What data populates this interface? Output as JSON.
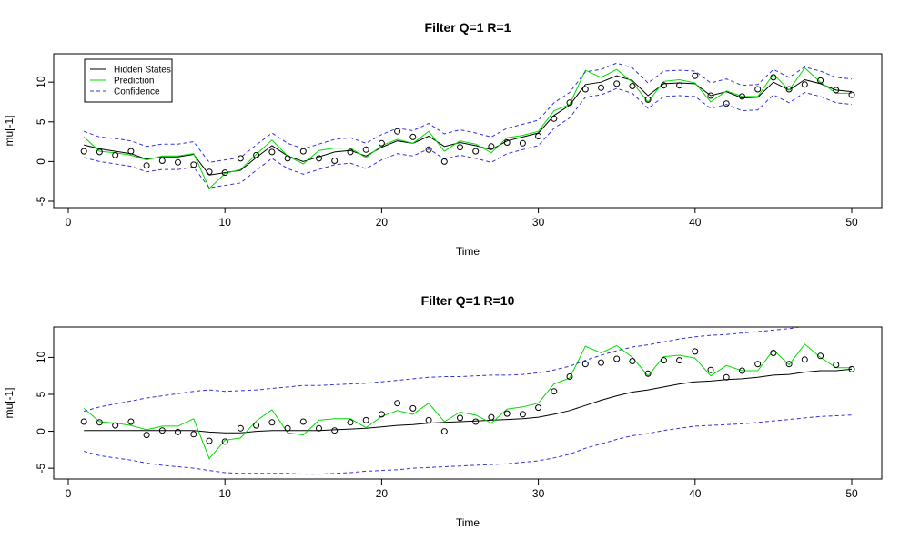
{
  "chart_data": [
    {
      "type": "line",
      "title": "Filter Q=1 R=1",
      "xlabel": "Time",
      "ylabel": "mu[-1]",
      "xlim": [
        0,
        50
      ],
      "ylim": [
        -5,
        13
      ],
      "xticks": [
        0,
        10,
        20,
        30,
        40,
        50
      ],
      "yticks": [
        -5,
        0,
        5,
        10
      ],
      "legend": {
        "position": "top-left",
        "entries": [
          "Hidden States",
          "Prediction",
          "Confidence"
        ]
      },
      "x": [
        1,
        2,
        3,
        4,
        5,
        6,
        7,
        8,
        9,
        10,
        11,
        12,
        13,
        14,
        15,
        16,
        17,
        18,
        19,
        20,
        21,
        22,
        23,
        24,
        25,
        26,
        27,
        28,
        29,
        30,
        31,
        32,
        33,
        34,
        35,
        36,
        37,
        38,
        39,
        40,
        41,
        42,
        43,
        44,
        45,
        46,
        47,
        48,
        49,
        50
      ],
      "series": [
        {
          "name": "Hidden States",
          "style": "line",
          "color": "#000000",
          "values": [
            2.1,
            1.6,
            1.3,
            1.0,
            0.3,
            0.6,
            0.6,
            0.9,
            -1.7,
            -1.4,
            -1.1,
            0.5,
            2.0,
            0.7,
            0.0,
            0.6,
            1.2,
            1.4,
            0.7,
            1.8,
            2.6,
            2.3,
            3.2,
            1.9,
            2.4,
            2.0,
            1.5,
            2.6,
            3.1,
            3.6,
            5.8,
            7.1,
            9.7,
            10.0,
            10.8,
            10.2,
            8.3,
            9.8,
            9.9,
            9.8,
            8.3,
            8.8,
            8.0,
            8.1,
            10.0,
            9.0,
            10.3,
            9.8,
            9.0,
            8.8
          ]
        },
        {
          "name": "Prediction",
          "style": "line",
          "color": "#00dd00",
          "values": [
            3.1,
            1.3,
            1.1,
            0.8,
            0.2,
            0.7,
            0.7,
            1.0,
            -3.4,
            -1.5,
            -1.0,
            0.9,
            2.7,
            0.7,
            -0.3,
            1.4,
            1.7,
            1.7,
            0.5,
            2.0,
            2.8,
            2.3,
            3.8,
            1.3,
            2.6,
            2.2,
            1.1,
            3.0,
            3.3,
            3.8,
            6.4,
            7.2,
            11.5,
            10.6,
            11.6,
            10.0,
            7.5,
            10.1,
            10.3,
            9.9,
            7.5,
            8.9,
            8.2,
            8.2,
            11.0,
            9.0,
            11.8,
            10.0,
            8.6,
            8.6
          ]
        },
        {
          "name": "Confidence",
          "style": "dashed",
          "color": "#3333dd",
          "band": true,
          "upper": [
            3.8,
            3.1,
            2.9,
            2.6,
            1.9,
            2.2,
            2.2,
            2.5,
            -0.1,
            0.2,
            0.5,
            2.1,
            3.6,
            2.3,
            1.6,
            2.2,
            2.8,
            3.0,
            2.3,
            3.4,
            4.2,
            3.9,
            4.8,
            3.5,
            4.0,
            3.6,
            3.1,
            4.2,
            4.7,
            5.2,
            7.4,
            8.7,
            11.3,
            11.6,
            12.4,
            11.8,
            9.9,
            11.4,
            11.5,
            11.4,
            9.9,
            10.4,
            9.6,
            9.7,
            11.6,
            10.6,
            11.9,
            11.4,
            10.6,
            10.4
          ],
          "lower": [
            0.5,
            0.0,
            -0.3,
            -0.6,
            -1.3,
            -1.0,
            -1.0,
            -0.7,
            -3.3,
            -3.0,
            -2.7,
            -1.1,
            0.4,
            -0.9,
            -1.6,
            -1.0,
            -0.4,
            -0.2,
            -0.9,
            0.2,
            1.0,
            0.7,
            1.6,
            0.3,
            0.8,
            0.4,
            -0.1,
            1.0,
            1.5,
            2.0,
            4.2,
            5.5,
            8.1,
            8.4,
            9.2,
            8.6,
            6.7,
            8.2,
            8.3,
            8.2,
            6.7,
            7.2,
            6.4,
            6.5,
            8.4,
            7.4,
            8.7,
            8.2,
            7.4,
            7.2
          ]
        },
        {
          "name": "Observations",
          "style": "points",
          "color": "#000000",
          "values": [
            1.3,
            1.2,
            0.8,
            1.3,
            -0.5,
            0.1,
            -0.1,
            -0.4,
            -1.3,
            -1.4,
            0.4,
            0.8,
            1.2,
            0.4,
            1.3,
            0.4,
            0.1,
            1.2,
            1.5,
            2.3,
            3.8,
            3.1,
            1.5,
            0.0,
            1.8,
            1.3,
            1.9,
            2.4,
            2.3,
            3.2,
            5.4,
            7.4,
            9.1,
            9.3,
            9.8,
            9.5,
            7.8,
            9.6,
            9.6,
            10.8,
            8.3,
            7.3,
            8.2,
            9.1,
            10.6,
            9.1,
            9.7,
            10.2,
            9.0,
            8.4
          ]
        }
      ]
    },
    {
      "type": "line",
      "title": "Filter Q=1 R=10",
      "xlabel": "Time",
      "ylabel": "mu[-1]",
      "xlim": [
        0,
        50
      ],
      "ylim": [
        -5.6,
        13.5
      ],
      "xticks": [
        0,
        10,
        20,
        30,
        40,
        50
      ],
      "yticks": [
        -5,
        0,
        5,
        10
      ],
      "x": [
        1,
        2,
        3,
        4,
        5,
        6,
        7,
        8,
        9,
        10,
        11,
        12,
        13,
        14,
        15,
        16,
        17,
        18,
        19,
        20,
        21,
        22,
        23,
        24,
        25,
        26,
        27,
        28,
        29,
        30,
        31,
        32,
        33,
        34,
        35,
        36,
        37,
        38,
        39,
        40,
        41,
        42,
        43,
        44,
        45,
        46,
        47,
        48,
        49,
        50
      ],
      "series": [
        {
          "name": "Hidden States",
          "style": "line",
          "color": "#000000",
          "values": [
            0.1,
            0.1,
            0.1,
            0.1,
            0.1,
            0.1,
            0.1,
            0.1,
            -0.1,
            -0.2,
            -0.2,
            0.0,
            0.1,
            0.1,
            0.1,
            0.1,
            0.2,
            0.3,
            0.4,
            0.6,
            0.8,
            0.9,
            1.1,
            1.2,
            1.3,
            1.4,
            1.5,
            1.6,
            1.7,
            1.9,
            2.3,
            2.8,
            3.5,
            4.2,
            4.8,
            5.3,
            5.6,
            6.0,
            6.4,
            6.7,
            6.8,
            7.0,
            7.1,
            7.3,
            7.6,
            7.7,
            8.0,
            8.2,
            8.2,
            8.4
          ]
        },
        {
          "name": "Prediction",
          "style": "line",
          "color": "#00dd00",
          "values": [
            3.1,
            1.3,
            1.1,
            0.8,
            0.2,
            0.7,
            0.7,
            1.7,
            -3.7,
            -1.2,
            -0.9,
            1.4,
            2.9,
            -0.2,
            -0.5,
            1.5,
            1.7,
            1.7,
            0.5,
            2.0,
            2.8,
            2.3,
            3.8,
            1.3,
            2.6,
            2.2,
            1.1,
            3.0,
            3.3,
            3.8,
            6.4,
            7.2,
            11.5,
            10.6,
            11.6,
            10.0,
            7.5,
            10.1,
            10.3,
            9.9,
            7.5,
            8.9,
            8.2,
            8.2,
            11.0,
            9.0,
            11.8,
            10.0,
            8.6,
            8.6
          ]
        },
        {
          "name": "Confidence",
          "style": "dashed",
          "color": "#3333dd",
          "band": true,
          "upper": [
            2.7,
            3.3,
            3.7,
            4.1,
            4.5,
            4.8,
            5.1,
            5.4,
            5.6,
            5.4,
            5.5,
            5.6,
            5.8,
            6.0,
            6.2,
            6.2,
            6.3,
            6.4,
            6.5,
            6.7,
            6.9,
            7.1,
            7.3,
            7.4,
            7.4,
            7.5,
            7.6,
            7.6,
            7.7,
            7.9,
            8.3,
            8.8,
            9.6,
            10.3,
            10.9,
            11.4,
            11.7,
            12.1,
            12.5,
            12.8,
            13.0,
            13.1,
            13.3,
            13.5,
            13.7,
            13.9,
            14.2,
            14.4,
            14.5,
            14.7
          ],
          "lower": [
            -2.7,
            -3.3,
            -3.6,
            -3.9,
            -4.3,
            -4.6,
            -4.8,
            -5.0,
            -5.3,
            -5.6,
            -5.7,
            -5.7,
            -5.7,
            -5.7,
            -5.8,
            -5.8,
            -5.7,
            -5.6,
            -5.4,
            -5.3,
            -5.2,
            -5.0,
            -4.9,
            -4.8,
            -4.7,
            -4.6,
            -4.5,
            -4.4,
            -4.2,
            -4.0,
            -3.6,
            -3.1,
            -2.3,
            -1.7,
            -1.1,
            -0.6,
            -0.3,
            0.1,
            0.4,
            0.7,
            0.8,
            0.9,
            1.0,
            1.2,
            1.4,
            1.6,
            1.8,
            2.0,
            2.1,
            2.2
          ]
        },
        {
          "name": "Observations",
          "style": "points",
          "color": "#000000",
          "values": [
            1.3,
            1.2,
            0.8,
            1.3,
            -0.5,
            0.1,
            -0.1,
            -0.4,
            -1.3,
            -1.4,
            0.4,
            0.8,
            1.2,
            0.4,
            1.3,
            0.4,
            0.1,
            1.2,
            1.5,
            2.3,
            3.8,
            3.1,
            1.5,
            0.0,
            1.8,
            1.3,
            1.9,
            2.4,
            2.3,
            3.2,
            5.4,
            7.4,
            9.1,
            9.3,
            9.8,
            9.5,
            7.8,
            9.6,
            9.6,
            10.8,
            8.3,
            7.3,
            8.2,
            9.1,
            10.6,
            9.1,
            9.7,
            10.2,
            9.0,
            8.4
          ]
        }
      ]
    }
  ]
}
